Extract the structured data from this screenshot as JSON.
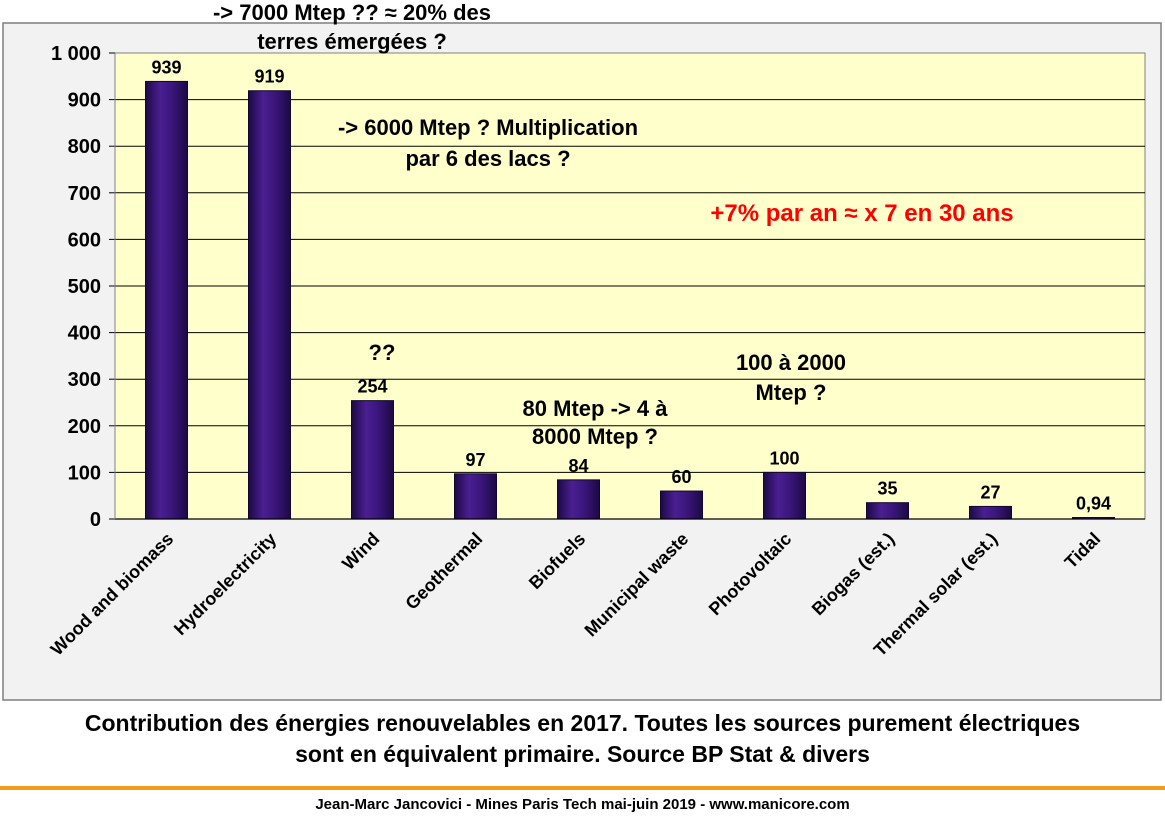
{
  "chart_data": {
    "type": "bar",
    "categories": [
      "Wood and biomass",
      "Hydroelectricity",
      "Wind",
      "Geothermal",
      "Biofuels",
      "Municipal waste",
      "Photovoltaic",
      "Biogas (est.)",
      "Thermal solar (est.)",
      "Tidal"
    ],
    "values": [
      939,
      919,
      254,
      97,
      84,
      60,
      100,
      35,
      27,
      0.94
    ],
    "value_labels": [
      "939",
      "919",
      "254",
      "97",
      "84",
      "60",
      "100",
      "35",
      "27",
      "0,94"
    ],
    "yticks": [
      "0",
      "100",
      "200",
      "300",
      "400",
      "500",
      "600",
      "700",
      "800",
      "900",
      "1 000"
    ],
    "ylim": [
      0,
      1000
    ],
    "grid": true,
    "title": "",
    "xlabel": "",
    "ylabel": "",
    "colors": {
      "plot_background": "#ffffcc",
      "bar": "#3a1578",
      "bar_dark": "#1c0945",
      "annotation_red": "#ff0000",
      "frame_background": "#f2f2f2"
    },
    "annotations": [
      {
        "id": "wood",
        "lines": [
          "-> 7000 Mtep ?? ≈ 20% des",
          "terres émergées ?"
        ],
        "color": "#000000"
      },
      {
        "id": "hydro",
        "lines": [
          "-> 6000 Mtep ? Multiplication",
          "par 6 des lacs ?"
        ],
        "color": "#000000"
      },
      {
        "id": "growth",
        "lines": [
          "+7% par an ≈ x 7 en 30 ans"
        ],
        "color": "#ff0000"
      },
      {
        "id": "wind",
        "lines": [
          "??"
        ],
        "color": "#000000"
      },
      {
        "id": "biofuels",
        "lines": [
          "80 Mtep -> 4 à",
          "8000 Mtep ?"
        ],
        "color": "#000000"
      },
      {
        "id": "pv",
        "lines": [
          "100 à 2000",
          "Mtep ?"
        ],
        "color": "#000000"
      }
    ]
  },
  "caption": {
    "line1": "Contribution des énergies renouvelables en 2017. Toutes les sources purement électriques",
    "line2": "sont en équivalent primaire. Source BP Stat & divers"
  },
  "footer": "Jean-Marc Jancovici - Mines Paris Tech mai-juin 2019 - www.manicore.com"
}
